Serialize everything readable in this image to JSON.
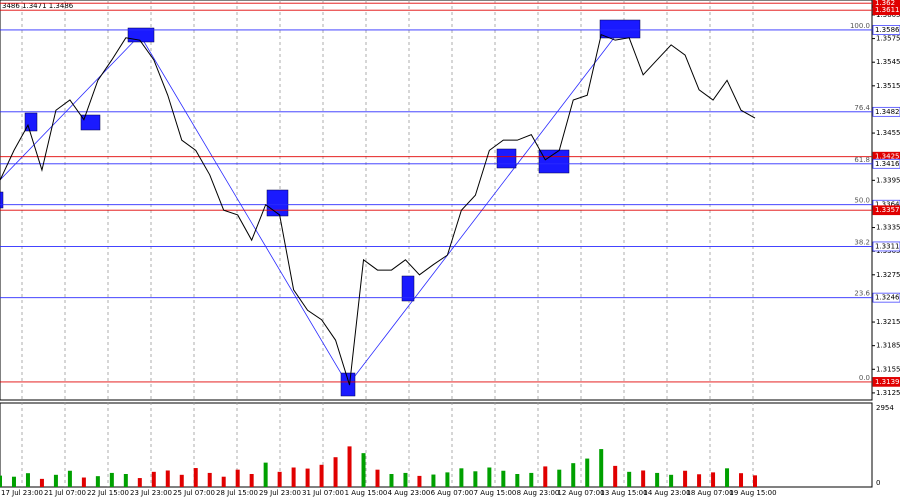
{
  "chart_data": {
    "type": "line",
    "info": "3486 1.3471 1.3486",
    "x_labels": [
      "17 Jul 23:00",
      "21 Jul 07:00",
      "22 Jul 15:00",
      "23 Jul 23:00",
      "25 Jul 07:00",
      "28 Jul 15:00",
      "29 Jul 23:00",
      "31 Jul 07:00",
      "1 Aug 15:00",
      "4 Aug 23:00",
      "6 Aug 07:00",
      "7 Aug 15:00",
      "8 Aug 23:00",
      "12 Aug 07:00",
      "13 Aug 15:00",
      "14 Aug 23:00",
      "18 Aug 07:00",
      "19 Aug 15:00"
    ],
    "series": [
      {
        "name": "GBPUSD",
        "color": "#000000",
        "values": [
          1.3395,
          1.3433,
          1.3465,
          1.3408,
          1.3484,
          1.3497,
          1.3472,
          1.3522,
          1.3548,
          1.3576,
          1.3573,
          1.3548,
          1.3503,
          1.3446,
          1.3433,
          1.3402,
          1.3357,
          1.3351,
          1.3319,
          1.3364,
          1.3351,
          1.3256,
          1.323,
          1.3218,
          1.3192,
          1.3135,
          1.3294,
          1.3281,
          1.3281,
          1.3294,
          1.3275,
          1.3288,
          1.33,
          1.3357,
          1.3376,
          1.3433,
          1.3446,
          1.3446,
          1.3453,
          1.3421,
          1.3433,
          1.3497,
          1.3503,
          1.358,
          1.3573,
          1.3576,
          1.3529,
          1.3548,
          1.3567,
          1.3554,
          1.351,
          1.3497,
          1.3522,
          1.3484,
          1.3474
        ]
      }
    ],
    "volume": {
      "up_color": "#00a000",
      "down_color": "#e00000",
      "values": [
        420,
        380,
        510,
        300,
        450,
        600,
        350,
        400,
        520,
        480,
        330,
        560,
        610,
        450,
        700,
        520,
        380,
        640,
        480,
        900,
        560,
        720,
        680,
        820,
        1100,
        1500,
        1250,
        640,
        480,
        520,
        410,
        460,
        540,
        690,
        580,
        720,
        600,
        480,
        520,
        760,
        640,
        880,
        1050,
        1400,
        780,
        560,
        610,
        520,
        450,
        600,
        470,
        540,
        690,
        510,
        430
      ],
      "ylim": [
        0,
        2954
      ]
    },
    "ylim": [
      1.3116,
      1.3624
    ],
    "yticks": [
      1.3605,
      1.3575,
      1.3545,
      1.3515,
      1.3455,
      1.3395,
      1.3335,
      1.3305,
      1.3275,
      1.3215,
      1.3185,
      1.3155,
      1.3125
    ],
    "levels": [
      {
        "value": 1.362,
        "color": "#e00000"
      },
      {
        "value": 1.3611,
        "color": "#e00000"
      },
      {
        "value": 1.3586,
        "fib": "100.0",
        "color": "#2a2aff"
      },
      {
        "value": 1.3482,
        "fib": "76.4",
        "color": "#2a2aff"
      },
      {
        "value": 1.3425,
        "color": "#e00000"
      },
      {
        "value": 1.3416,
        "fib": "61.8",
        "color": "#2a2aff"
      },
      {
        "value": 1.3364,
        "fib": "50.0",
        "color": "#2a2aff"
      },
      {
        "value": 1.3357,
        "color": "#e00000"
      },
      {
        "value": 1.3311,
        "fib": "38.2",
        "color": "#2a2aff"
      },
      {
        "value": 1.3246,
        "fib": "23.6",
        "color": "#2a2aff"
      },
      {
        "value": 1.3139,
        "fib": "0.0",
        "color": "#e00000"
      }
    ]
  }
}
